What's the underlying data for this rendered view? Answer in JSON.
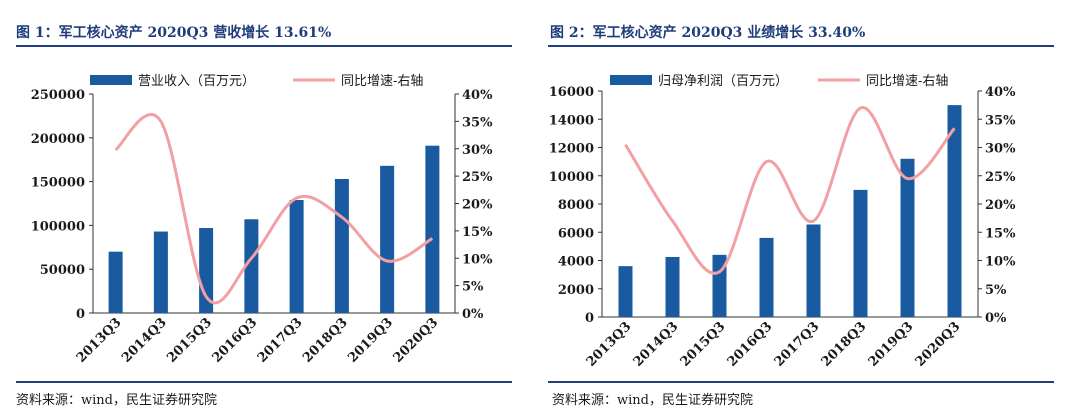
{
  "colors": {
    "bar": "#1a5aa0",
    "line": "#f2a0a4",
    "title": "#1f3d7a"
  },
  "panels": [
    {
      "title": "图 1：军工核心资产 2020Q3 营收增长 13.61%",
      "source": "资料来源：wind，民生证券研究院",
      "chart_data": {
        "type": "bar",
        "categories": [
          "2013Q3",
          "2014Q3",
          "2015Q3",
          "2016Q3",
          "2017Q3",
          "2018Q3",
          "2019Q3",
          "2020Q3"
        ],
        "series": [
          {
            "name": "营业收入（百万元）",
            "type": "bar",
            "axis": "left",
            "values": [
              70000,
              93000,
              97000,
              107000,
              129000,
              153000,
              168000,
              191000
            ]
          },
          {
            "name": "同比增速-右轴",
            "type": "line",
            "axis": "right",
            "values": [
              0.298,
              0.35,
              0.03,
              0.1,
              0.21,
              0.175,
              0.095,
              0.1361
            ]
          }
        ],
        "ylim_left": [
          0,
          250000
        ],
        "yticks_left": [
          "0",
          "50000",
          "100000",
          "150000",
          "200000",
          "250000"
        ],
        "ylim_right": [
          0,
          0.4
        ],
        "yticks_right": [
          "0%",
          "5%",
          "10%",
          "15%",
          "20%",
          "25%",
          "30%",
          "35%",
          "40%"
        ],
        "legend_position": "top",
        "grid": false
      }
    },
    {
      "title": "图 2：军工核心资产 2020Q3 业绩增长 33.40%",
      "source": "资料来源：wind，民生证券研究院",
      "chart_data": {
        "type": "bar",
        "categories": [
          "2013Q3",
          "2014Q3",
          "2015Q3",
          "2016Q3",
          "2017Q3",
          "2018Q3",
          "2019Q3",
          "2020Q3"
        ],
        "series": [
          {
            "name": "归母净利润（百万元）",
            "type": "bar",
            "axis": "left",
            "values": [
              3600,
              4250,
              4400,
              5600,
              6550,
              9000,
              11200,
              15000
            ]
          },
          {
            "name": "同比增速-右轴",
            "type": "line",
            "axis": "right",
            "values": [
              0.305,
              0.17,
              0.08,
              0.275,
              0.17,
              0.37,
              0.245,
              0.334
            ]
          }
        ],
        "ylim_left": [
          0,
          16000
        ],
        "yticks_left": [
          "0",
          "2000",
          "4000",
          "6000",
          "8000",
          "10000",
          "12000",
          "14000",
          "16000"
        ],
        "ylim_right": [
          0,
          0.4
        ],
        "yticks_right": [
          "0%",
          "5%",
          "10%",
          "15%",
          "20%",
          "25%",
          "30%",
          "35%",
          "40%"
        ],
        "legend_position": "top",
        "grid": false
      }
    }
  ]
}
